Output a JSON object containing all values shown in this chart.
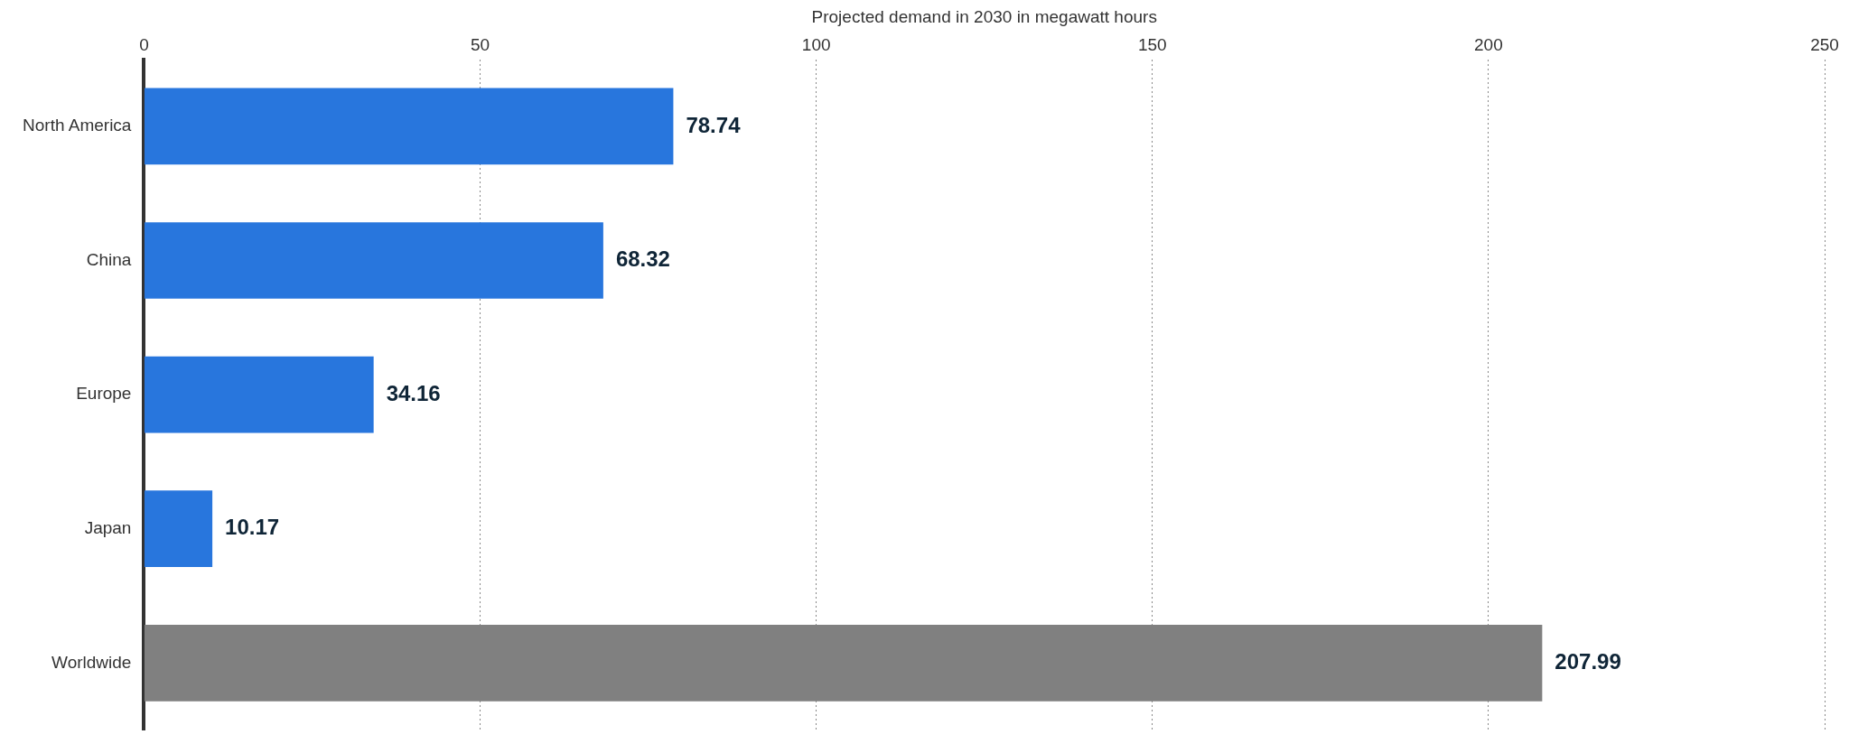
{
  "chart_data": {
    "type": "bar",
    "orientation": "horizontal",
    "xlabel": "Projected demand in 2030 in megawatt hours",
    "categories": [
      "North America",
      "China",
      "Europe",
      "Japan",
      "Worldwide"
    ],
    "values": [
      78.74,
      68.32,
      34.16,
      10.17,
      207.99
    ],
    "colors": [
      "#2876dd",
      "#2876dd",
      "#2876dd",
      "#2876dd",
      "#808080"
    ],
    "xlim": [
      0,
      250
    ],
    "xticks": [
      0,
      50,
      100,
      150,
      200,
      250
    ],
    "grid": "x",
    "data_labels": true
  }
}
